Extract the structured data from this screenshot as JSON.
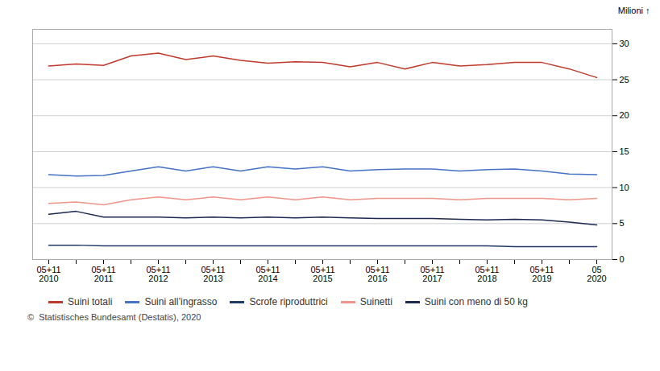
{
  "chart_data": {
    "type": "line",
    "categories": [
      "05+11\n2010",
      null,
      "05+11\n2011",
      null,
      "05+11\n2012",
      null,
      "05+11\n2013",
      null,
      "05+11\n2014",
      null,
      "05+11\n2015",
      null,
      "05+11\n2016",
      null,
      "05+11\n2017",
      null,
      "05+11\n2018",
      null,
      "05+11\n2019",
      null,
      "05\n2020"
    ],
    "ylabel": "Milioni",
    "ylim": [
      0,
      32
    ],
    "yticks": [
      0,
      5,
      10,
      15,
      20,
      25,
      30
    ],
    "grid": true,
    "legend": "bottom",
    "series": [
      {
        "name": "Suini totali",
        "color": "#c0392b",
        "values": [
          26.9,
          27.2,
          27.0,
          28.3,
          28.7,
          27.8,
          28.3,
          27.7,
          27.3,
          27.5,
          27.4,
          26.8,
          27.4,
          26.5,
          27.4,
          26.9,
          27.1,
          27.4,
          27.4,
          26.5,
          25.3
        ]
      },
      {
        "name": "Suini all’ingrasso",
        "color": "#4472c4",
        "values": [
          11.8,
          11.6,
          11.7,
          12.3,
          12.9,
          12.3,
          12.9,
          12.3,
          12.9,
          12.6,
          12.9,
          12.3,
          12.5,
          12.6,
          12.6,
          12.3,
          12.5,
          12.6,
          12.3,
          11.9,
          11.8
        ]
      },
      {
        "name": "Scrofe riproduttrici",
        "color": "#1f3864",
        "values": [
          2.0,
          2.0,
          1.9,
          1.9,
          1.9,
          1.9,
          1.9,
          1.9,
          1.9,
          1.9,
          1.9,
          1.9,
          1.9,
          1.9,
          1.9,
          1.9,
          1.9,
          1.8,
          1.8,
          1.8,
          1.8
        ]
      },
      {
        "name": "Suinetti",
        "color": "#f1948a",
        "values": [
          7.8,
          8.0,
          7.6,
          8.3,
          8.7,
          8.3,
          8.7,
          8.3,
          8.7,
          8.3,
          8.7,
          8.3,
          8.5,
          8.5,
          8.5,
          8.3,
          8.5,
          8.5,
          8.5,
          8.3,
          8.5
        ]
      },
      {
        "name": "Suini con meno di 50 kg",
        "color": "#1c2951",
        "values": [
          6.3,
          6.7,
          5.9,
          5.9,
          5.9,
          5.8,
          5.9,
          5.8,
          5.9,
          5.8,
          5.9,
          5.8,
          5.7,
          5.7,
          5.7,
          5.6,
          5.5,
          5.6,
          5.5,
          5.2,
          4.8
        ]
      }
    ],
    "caption": "©  Statistisches Bundesamt (Destatis), 2020"
  }
}
